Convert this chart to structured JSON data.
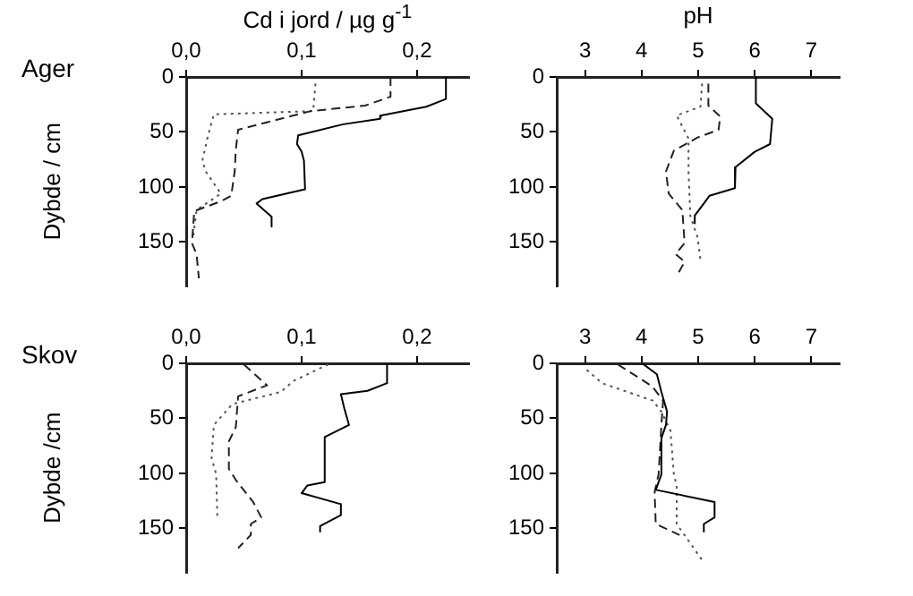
{
  "chart_data": [
    {
      "type": "line",
      "xlabel": "Cd i jord / µg g$^{-1}$",
      "ylabel": "Dybde / cm",
      "annotations": [
        "Ager"
      ],
      "xlim": [
        0,
        0.245
      ],
      "xticks": [
        {
          "value": 0,
          "label": "0,0"
        },
        {
          "value": 0.1,
          "label": "0,1"
        },
        {
          "value": 0.2,
          "label": "0,2"
        }
      ],
      "ylim": [
        190,
        0
      ],
      "yticks": [
        0,
        50,
        100,
        150
      ],
      "series": [
        {
          "color": "#000000",
          "line_style": "solid",
          "x": [
            0.225,
            0.225,
            0.208,
            0.169,
            0.168,
            0.136,
            0.097,
            0.096,
            0.1,
            0.102,
            0.103,
            0.066,
            0.061,
            0.074,
            0.074
          ],
          "values": [
            0,
            20,
            27,
            35,
            38,
            43,
            53,
            61,
            68,
            76,
            102,
            111,
            115,
            127,
            136
          ]
        },
        {
          "color": "#222222",
          "line_style": "dashed",
          "x": [
            0.177,
            0.177,
            0.155,
            0.108,
            0.045,
            0.043,
            0.042,
            0.039,
            0.03,
            0.007,
            0.005,
            0.009,
            0.011
          ],
          "values": [
            0,
            18,
            26,
            31,
            48,
            66,
            86,
            108,
            113,
            122,
            151,
            161,
            183
          ]
        },
        {
          "color": "#555555",
          "line_style": "dotted",
          "x": [
            0.112,
            0.11,
            0.024,
            0.019,
            0.014,
            0.017,
            0.03,
            0.009,
            0.006
          ],
          "values": [
            6,
            31,
            34,
            53,
            76,
            86,
            106,
            121,
            146
          ]
        }
      ]
    },
    {
      "type": "line",
      "xlabel": "pH",
      "xlim": [
        2.5,
        7.5
      ],
      "xticks": [
        3,
        4,
        5,
        6,
        7
      ],
      "ylim": [
        190,
        0
      ],
      "yticks": [
        0,
        50,
        100,
        150
      ],
      "series": [
        {
          "color": "#000000",
          "line_style": "solid",
          "x": [
            6.02,
            6.02,
            6.31,
            6.27,
            6.0,
            5.66,
            5.65,
            5.2,
            5.13,
            4.94,
            4.94
          ],
          "values": [
            0,
            24,
            38,
            61,
            68,
            82,
            101,
            108,
            113,
            126,
            133
          ]
        },
        {
          "color": "#222222",
          "line_style": "dashed",
          "x": [
            5.18,
            5.18,
            5.39,
            5.36,
            4.99,
            4.57,
            4.43,
            4.48,
            4.72,
            4.76,
            4.6,
            4.76,
            4.62
          ],
          "values": [
            6,
            26,
            36,
            48,
            55,
            67,
            86,
            106,
            121,
            151,
            161,
            168,
            181
          ]
        },
        {
          "color": "#555555",
          "line_style": "dotted",
          "x": [
            5.07,
            5.04,
            4.62,
            4.83,
            4.83,
            4.86,
            4.99,
            5.04
          ],
          "values": [
            6,
            27,
            35,
            56,
            86,
            126,
            146,
            166
          ]
        }
      ]
    },
    {
      "type": "line",
      "ylabel": "Dybde /cm",
      "annotations": [
        "Skov"
      ],
      "xlim": [
        0,
        0.245
      ],
      "xticks": [
        {
          "value": 0,
          "label": "0,0"
        },
        {
          "value": 0.1,
          "label": "0,1"
        },
        {
          "value": 0.2,
          "label": "0,2"
        }
      ],
      "ylim": [
        190,
        0
      ],
      "yticks": [
        0,
        50,
        100,
        150
      ],
      "series": [
        {
          "color": "#000000",
          "line_style": "solid",
          "x": [
            0.174,
            0.174,
            0.157,
            0.134,
            0.137,
            0.141,
            0.12,
            0.12,
            0.105,
            0.1,
            0.134,
            0.134,
            0.116,
            0.116
          ],
          "values": [
            0,
            18,
            25,
            28,
            41,
            56,
            67,
            108,
            111,
            118,
            128,
            138,
            148,
            153
          ]
        },
        {
          "color": "#222222",
          "line_style": "dashed",
          "x": [
            0.05,
            0.07,
            0.045,
            0.043,
            0.037,
            0.037,
            0.043,
            0.058,
            0.065,
            0.056,
            0.056,
            0.045
          ],
          "values": [
            1,
            20,
            30,
            58,
            71,
            96,
            106,
            126,
            140,
            146,
            156,
            168
          ]
        },
        {
          "color": "#555555",
          "line_style": "dotted",
          "x": [
            0.123,
            0.093,
            0.082,
            0.04,
            0.024,
            0.022,
            0.026,
            0.027
          ],
          "values": [
            1,
            16,
            26,
            37,
            56,
            86,
            101,
            141
          ]
        }
      ]
    },
    {
      "type": "line",
      "xlim": [
        2.5,
        7.5
      ],
      "xticks": [
        3,
        4,
        5,
        6,
        7
      ],
      "ylim": [
        190,
        0
      ],
      "yticks": [
        0,
        50,
        100,
        150
      ],
      "series": [
        {
          "color": "#000000",
          "line_style": "solid",
          "x": [
            4.01,
            4.27,
            4.35,
            4.45,
            4.43,
            4.35,
            4.35,
            4.25,
            5.29,
            5.29,
            5.1,
            5.1
          ],
          "values": [
            0,
            10,
            26,
            44,
            56,
            68,
            101,
            115,
            126,
            140,
            146,
            153
          ]
        },
        {
          "color": "#222222",
          "line_style": "dashed",
          "x": [
            3.58,
            4.19,
            4.38,
            4.35,
            4.3,
            4.23,
            4.25,
            4.67
          ],
          "values": [
            1,
            21,
            34,
            56,
            101,
            117,
            146,
            156
          ]
        },
        {
          "color": "#555555",
          "line_style": "dotted",
          "x": [
            3.03,
            3.3,
            4.2,
            4.35,
            4.51,
            4.57,
            4.62,
            4.62,
            5.1
          ],
          "values": [
            6,
            18,
            34,
            44,
            61,
            101,
            111,
            146,
            181
          ]
        }
      ]
    }
  ]
}
